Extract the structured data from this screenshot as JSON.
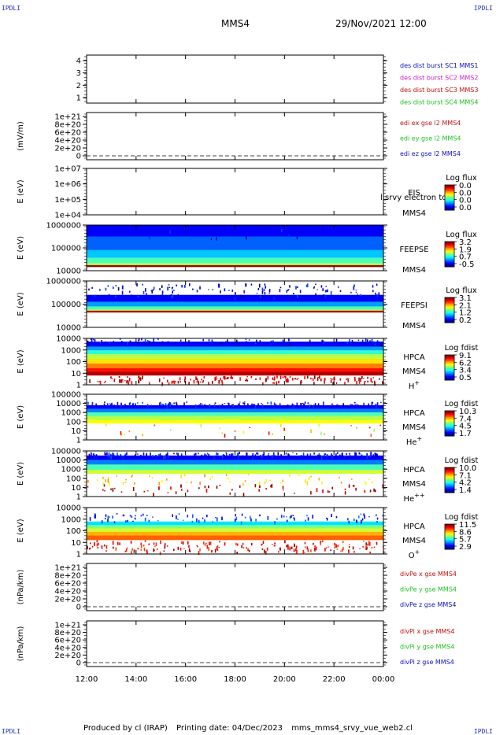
{
  "corner_label": "IPDLI",
  "header": {
    "spacecraft": "MMS4",
    "datetime": "29/Nov/2021 12:00"
  },
  "footer": {
    "produced": "Produced by cl (IRAP)",
    "printing": "Printing date: 04/Dec/2023",
    "file": "mms_mms4_srvy_vue_web2.cl"
  },
  "chart_data": {
    "type": "heatmap",
    "xlabel": "",
    "x_ticks": [
      "12:00",
      "14:00",
      "16:00",
      "18:00",
      "20:00",
      "22:00",
      "00:00"
    ],
    "x_range_hours": [
      12,
      24
    ],
    "panels": [
      {
        "id": "sc-config",
        "kind": "empty",
        "ylabel": "",
        "ylim": [
          0.5,
          4.5
        ],
        "y_ticks": [
          "1",
          "2",
          "3",
          "4"
        ],
        "legend": [
          {
            "text": "des dist burst SC1 MMS1",
            "color": "#1010c0"
          },
          {
            "text": "des dist burst SC2 MMS2",
            "color": "#d020c0"
          },
          {
            "text": "des dist burst SC3 MMS3",
            "color": "#c01010"
          },
          {
            "text": "des dist burst SC4 MMS4",
            "color": "#20c020"
          }
        ]
      },
      {
        "id": "edi-efield",
        "kind": "line",
        "ylabel": "(mV/m)",
        "dashed_zero": true,
        "y_ticks": [
          "1e+21",
          "8e+20",
          "6e+20",
          "4e+20",
          "2e+20",
          "0"
        ],
        "legend": [
          {
            "text": "edi ex gse l2 MMS4",
            "color": "#c01010"
          },
          {
            "text": "edi ey gse l2 MMS4",
            "color": "#20c020"
          },
          {
            "text": "edi ez gse l2 MMS4",
            "color": "#1010c0"
          }
        ]
      },
      {
        "id": "eis",
        "kind": "spectrogram",
        "ylabel": "E (eV)",
        "y_ticks": [
          "1e+07",
          "1e+06",
          "1e+05",
          "1e+04"
        ],
        "labels": [
          "EIS",
          "MMS4"
        ],
        "overlay_text": "l srvy electron to",
        "colorbar": {
          "title": "Log flux",
          "ticks": [
            "0.0",
            "0.0",
            "0.0",
            "0.0"
          ]
        },
        "fill": "none"
      },
      {
        "id": "feeps-e",
        "kind": "spectrogram",
        "ylabel": "E (eV)",
        "y_ticks": [
          "1000000",
          "100000",
          "10000"
        ],
        "labels": [
          "FEEPSE",
          "MMS4"
        ],
        "colorbar": {
          "title": "Log flux",
          "ticks": [
            "3.2",
            "1.9",
            "0.7",
            "-0.5"
          ]
        },
        "fill": "feeps"
      },
      {
        "id": "feeps-i",
        "kind": "spectrogram",
        "ylabel": "E (eV)",
        "y_ticks": [
          "1000000",
          "100000",
          "10000"
        ],
        "labels": [
          "FEEPSI",
          "MMS4"
        ],
        "colorbar": {
          "title": "Log flux",
          "ticks": [
            "3.1",
            "2.1",
            "1.2",
            "0.2"
          ]
        },
        "fill": "feepsi"
      },
      {
        "id": "hpca-h",
        "kind": "spectrogram",
        "ylabel": "E (eV)",
        "y_ticks": [
          "10000",
          "1000",
          "100",
          "10",
          "1"
        ],
        "labels": [
          "HPCA",
          "MMS4",
          "H+"
        ],
        "colorbar": {
          "title": "Log fdist",
          "ticks": [
            "9.1",
            "6.2",
            "3.4",
            "0.5"
          ]
        },
        "fill": "hpca-h"
      },
      {
        "id": "hpca-he1",
        "kind": "spectrogram",
        "ylabel": "E (eV)",
        "y_ticks": [
          "100000",
          "10000",
          "1000",
          "100",
          "10",
          "1"
        ],
        "labels": [
          "HPCA",
          "MMS4",
          "He+"
        ],
        "colorbar": {
          "title": "Log fdist",
          "ticks": [
            "10.3",
            "7.4",
            "4.5",
            "1.7"
          ]
        },
        "fill": "hpca-he1"
      },
      {
        "id": "hpca-he2",
        "kind": "spectrogram",
        "ylabel": "E (eV)",
        "y_ticks": [
          "100000",
          "10000",
          "1000",
          "100",
          "10",
          "1"
        ],
        "labels": [
          "HPCA",
          "MMS4",
          "He++"
        ],
        "colorbar": {
          "title": "Log fdist",
          "ticks": [
            "10.0",
            "7.1",
            "4.2",
            "1.4"
          ]
        },
        "fill": "hpca-he2"
      },
      {
        "id": "hpca-o",
        "kind": "spectrogram",
        "ylabel": "E (eV)",
        "y_ticks": [
          "10000",
          "1000",
          "100",
          "10",
          "1"
        ],
        "labels": [
          "HPCA",
          "MMS4",
          "O+"
        ],
        "colorbar": {
          "title": "Log fdist",
          "ticks": [
            "11.5",
            "8.6",
            "5.7",
            "2.9"
          ]
        },
        "fill": "hpca-o"
      },
      {
        "id": "divpe",
        "kind": "line",
        "ylabel": "(nPa/km)",
        "dashed_zero": true,
        "y_ticks": [
          "1e+21",
          "8e+20",
          "6e+20",
          "4e+20",
          "2e+20",
          "0"
        ],
        "legend": [
          {
            "text": "divPe x gse MMS4",
            "color": "#c01010"
          },
          {
            "text": "divPe y gse MMS4",
            "color": "#20c020"
          },
          {
            "text": "divPe z gse MMS4",
            "color": "#1010c0"
          }
        ]
      },
      {
        "id": "divpi",
        "kind": "line",
        "ylabel": "(nPa/km)",
        "dashed_zero": true,
        "y_ticks": [
          "1e+21",
          "8e+20",
          "6e+20",
          "4e+20",
          "2e+20",
          "0"
        ],
        "legend": [
          {
            "text": "divPi x gse MMS4",
            "color": "#c01010"
          },
          {
            "text": "divPi y gse MMS4",
            "color": "#20c020"
          },
          {
            "text": "divPi z gse MMS4",
            "color": "#1010c0"
          }
        ]
      }
    ]
  }
}
